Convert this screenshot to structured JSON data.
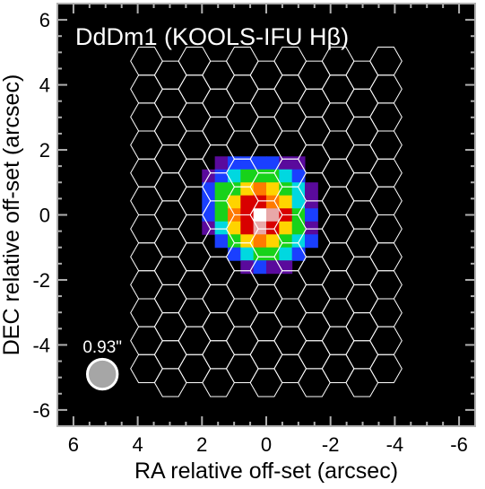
{
  "colors": {
    "background": "#000000",
    "frame": "#b0b0b0",
    "hex_outline": "#ffffff",
    "beam_fill": "#a6a6a6",
    "beam_edge": "#ffffff",
    "colormap": [
      "#5a0a9c",
      "#1a3fff",
      "#00d8e0",
      "#18d21a",
      "#ffd400",
      "#ff7a00",
      "#d80000",
      "#e8a8a8",
      "#ffffff"
    ]
  },
  "chart_data": {
    "type": "heatmap",
    "title": "DdDm1 (KOOLS-IFU Hβ)",
    "xlabel": "RA relative off-set (arcsec)",
    "ylabel": "DEC relative off-set (arcsec)",
    "xlim": [
      6.5,
      -6.5
    ],
    "ylim": [
      -6.5,
      6.5
    ],
    "x_ticks": [
      6,
      4,
      2,
      0,
      -2,
      -4,
      -6
    ],
    "x_tick_labels": [
      "6",
      "4",
      "2",
      "0",
      "-2",
      "-4",
      "-6"
    ],
    "y_ticks": [
      -6,
      -4,
      -2,
      0,
      2,
      4,
      6
    ],
    "y_tick_labels": [
      "-6",
      "-4",
      "-2",
      "0",
      "2",
      "4",
      "6"
    ],
    "beam": {
      "label": "0.93\"",
      "diameter_arcsec": 0.93,
      "ra": 5.1,
      "dec": -4.9
    },
    "ifu_fibers": {
      "shape": "hexagon",
      "cols": 11,
      "rows": 12,
      "pitch_arcsec": 0.86,
      "center": [
        0,
        0
      ]
    },
    "pixel_size_arcsec": 0.4,
    "cells": [
      {
        "ra": 1.4,
        "dec": 1.6,
        "level": 0
      },
      {
        "ra": 1.0,
        "dec": 1.6,
        "level": 1
      },
      {
        "ra": 0.6,
        "dec": 1.6,
        "level": 1
      },
      {
        "ra": 0.2,
        "dec": 1.6,
        "level": 1
      },
      {
        "ra": -0.2,
        "dec": 1.6,
        "level": 1
      },
      {
        "ra": -0.6,
        "dec": 1.6,
        "level": 0
      },
      {
        "ra": -1.0,
        "dec": 1.6,
        "level": 0
      },
      {
        "ra": 1.8,
        "dec": 1.2,
        "level": 0
      },
      {
        "ra": 1.4,
        "dec": 1.2,
        "level": 1
      },
      {
        "ra": 1.0,
        "dec": 1.2,
        "level": 2
      },
      {
        "ra": 0.6,
        "dec": 1.2,
        "level": 3
      },
      {
        "ra": 0.2,
        "dec": 1.2,
        "level": 3
      },
      {
        "ra": -0.2,
        "dec": 1.2,
        "level": 3
      },
      {
        "ra": -0.6,
        "dec": 1.2,
        "level": 2
      },
      {
        "ra": -1.0,
        "dec": 1.2,
        "level": 1
      },
      {
        "ra": 1.8,
        "dec": 0.8,
        "level": 1
      },
      {
        "ra": 1.4,
        "dec": 0.8,
        "level": 3
      },
      {
        "ra": 1.0,
        "dec": 0.8,
        "level": 3
      },
      {
        "ra": 0.6,
        "dec": 0.8,
        "level": 4
      },
      {
        "ra": 0.2,
        "dec": 0.8,
        "level": 5
      },
      {
        "ra": -0.2,
        "dec": 0.8,
        "level": 4
      },
      {
        "ra": -0.6,
        "dec": 0.8,
        "level": 3
      },
      {
        "ra": -1.0,
        "dec": 0.8,
        "level": 2
      },
      {
        "ra": -1.4,
        "dec": 0.8,
        "level": 0
      },
      {
        "ra": 1.8,
        "dec": 0.4,
        "level": 1
      },
      {
        "ra": 1.4,
        "dec": 0.4,
        "level": 3
      },
      {
        "ra": 1.0,
        "dec": 0.4,
        "level": 4
      },
      {
        "ra": 0.6,
        "dec": 0.4,
        "level": 6
      },
      {
        "ra": 0.2,
        "dec": 0.4,
        "level": 6
      },
      {
        "ra": -0.2,
        "dec": 0.4,
        "level": 5
      },
      {
        "ra": -0.6,
        "dec": 0.4,
        "level": 4
      },
      {
        "ra": -1.0,
        "dec": 0.4,
        "level": 2
      },
      {
        "ra": -1.4,
        "dec": 0.4,
        "level": 0
      },
      {
        "ra": 1.8,
        "dec": 0.0,
        "level": 1
      },
      {
        "ra": 1.4,
        "dec": 0.0,
        "level": 3
      },
      {
        "ra": 1.0,
        "dec": 0.0,
        "level": 5
      },
      {
        "ra": 0.6,
        "dec": 0.0,
        "level": 6
      },
      {
        "ra": 0.2,
        "dec": 0.0,
        "level": 8
      },
      {
        "ra": -0.2,
        "dec": 0.0,
        "level": 7
      },
      {
        "ra": -0.6,
        "dec": 0.0,
        "level": 6
      },
      {
        "ra": -1.0,
        "dec": 0.0,
        "level": 3
      },
      {
        "ra": -1.4,
        "dec": 0.0,
        "level": 1
      },
      {
        "ra": 1.8,
        "dec": -0.4,
        "level": 0
      },
      {
        "ra": 1.4,
        "dec": -0.4,
        "level": 2
      },
      {
        "ra": 1.0,
        "dec": -0.4,
        "level": 4
      },
      {
        "ra": 0.6,
        "dec": -0.4,
        "level": 6
      },
      {
        "ra": 0.2,
        "dec": -0.4,
        "level": 7
      },
      {
        "ra": -0.2,
        "dec": -0.4,
        "level": 6
      },
      {
        "ra": -0.6,
        "dec": -0.4,
        "level": 4
      },
      {
        "ra": -1.0,
        "dec": -0.4,
        "level": 3
      },
      {
        "ra": -1.4,
        "dec": -0.4,
        "level": 0
      },
      {
        "ra": 1.4,
        "dec": -0.8,
        "level": 1
      },
      {
        "ra": 1.0,
        "dec": -0.8,
        "level": 3
      },
      {
        "ra": 0.6,
        "dec": -0.8,
        "level": 4
      },
      {
        "ra": 0.2,
        "dec": -0.8,
        "level": 5
      },
      {
        "ra": -0.2,
        "dec": -0.8,
        "level": 4
      },
      {
        "ra": -0.6,
        "dec": -0.8,
        "level": 3
      },
      {
        "ra": -1.0,
        "dec": -0.8,
        "level": 2
      },
      {
        "ra": -1.4,
        "dec": -0.8,
        "level": 1
      },
      {
        "ra": 1.0,
        "dec": -1.2,
        "level": 1
      },
      {
        "ra": 0.6,
        "dec": -1.2,
        "level": 2
      },
      {
        "ra": 0.2,
        "dec": -1.2,
        "level": 3
      },
      {
        "ra": -0.2,
        "dec": -1.2,
        "level": 3
      },
      {
        "ra": -0.6,
        "dec": -1.2,
        "level": 2
      },
      {
        "ra": -1.0,
        "dec": -1.2,
        "level": 1
      },
      {
        "ra": 0.6,
        "dec": -1.6,
        "level": 0
      },
      {
        "ra": 0.2,
        "dec": -1.6,
        "level": 1
      },
      {
        "ra": -0.2,
        "dec": -1.6,
        "level": 0
      },
      {
        "ra": -0.6,
        "dec": -1.6,
        "level": 0
      }
    ]
  }
}
